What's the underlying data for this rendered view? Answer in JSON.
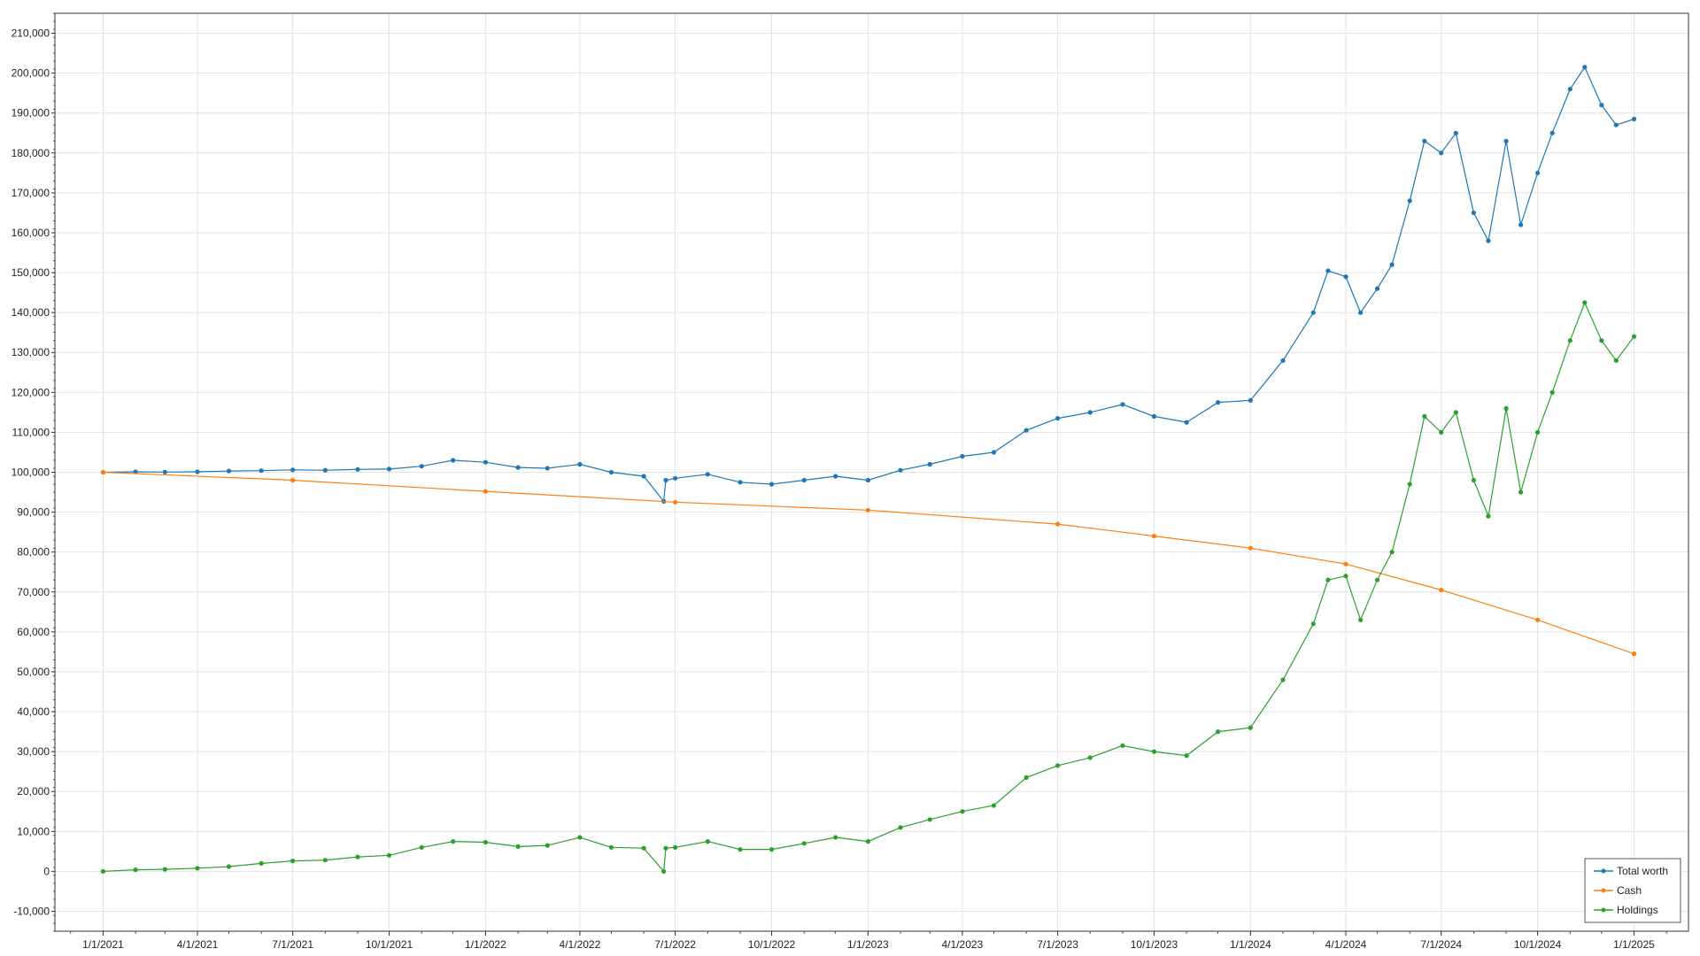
{
  "chart_data": {
    "type": "line",
    "title": "",
    "xlabel": "",
    "ylabel": "",
    "ylim": [
      -15000,
      215000
    ],
    "xlim": [
      "2020-11-16",
      "2025-02-22"
    ],
    "grid": true,
    "legend": "bottom-right",
    "x_ticks": [
      "1/1/2021",
      "4/1/2021",
      "7/1/2021",
      "10/1/2021",
      "1/1/2022",
      "4/1/2022",
      "7/1/2022",
      "10/1/2022",
      "1/1/2023",
      "4/1/2023",
      "7/1/2023",
      "10/1/2023",
      "1/1/2024",
      "4/1/2024",
      "7/1/2024",
      "10/1/2024",
      "1/1/2025"
    ],
    "y_ticks": [
      "-10,000",
      "0",
      "10,000",
      "20,000",
      "30,000",
      "40,000",
      "50,000",
      "60,000",
      "70,000",
      "80,000",
      "90,000",
      "100,000",
      "110,000",
      "120,000",
      "130,000",
      "140,000",
      "150,000",
      "160,000",
      "170,000",
      "180,000",
      "190,000",
      "200,000",
      "210,000"
    ],
    "y_tick_values": [
      -10000,
      0,
      10000,
      20000,
      30000,
      40000,
      50000,
      60000,
      70000,
      80000,
      90000,
      100000,
      110000,
      120000,
      130000,
      140000,
      150000,
      160000,
      170000,
      180000,
      190000,
      200000,
      210000
    ],
    "series": [
      {
        "name": "Total worth",
        "color": "#1f77b4",
        "points": [
          [
            "2021-01-01",
            100000
          ],
          [
            "2021-02-01",
            100100
          ],
          [
            "2021-03-01",
            100050
          ],
          [
            "2021-04-01",
            100100
          ],
          [
            "2021-05-01",
            100300
          ],
          [
            "2021-06-01",
            100400
          ],
          [
            "2021-07-01",
            100600
          ],
          [
            "2021-08-01",
            100500
          ],
          [
            "2021-09-01",
            100700
          ],
          [
            "2021-10-01",
            100800
          ],
          [
            "2021-11-01",
            101500
          ],
          [
            "2021-12-01",
            103000
          ],
          [
            "2022-01-01",
            102500
          ],
          [
            "2022-02-01",
            101200
          ],
          [
            "2022-03-01",
            101000
          ],
          [
            "2022-04-01",
            102000
          ],
          [
            "2022-05-01",
            100000
          ],
          [
            "2022-06-01",
            99000
          ],
          [
            "2022-06-20",
            92700
          ],
          [
            "2022-06-22",
            98000
          ],
          [
            "2022-07-01",
            98500
          ],
          [
            "2022-08-01",
            99500
          ],
          [
            "2022-09-01",
            97500
          ],
          [
            "2022-10-01",
            97000
          ],
          [
            "2022-11-01",
            98000
          ],
          [
            "2022-12-01",
            99000
          ],
          [
            "2023-01-01",
            98000
          ],
          [
            "2023-02-01",
            100500
          ],
          [
            "2023-03-01",
            102000
          ],
          [
            "2023-04-01",
            104000
          ],
          [
            "2023-05-01",
            105000
          ],
          [
            "2023-06-01",
            110500
          ],
          [
            "2023-07-01",
            113500
          ],
          [
            "2023-08-01",
            115000
          ],
          [
            "2023-09-01",
            117000
          ],
          [
            "2023-10-01",
            114000
          ],
          [
            "2023-11-01",
            112500
          ],
          [
            "2023-12-01",
            117500
          ],
          [
            "2024-01-01",
            118000
          ],
          [
            "2024-02-01",
            128000
          ],
          [
            "2024-03-01",
            140000
          ],
          [
            "2024-03-15",
            150500
          ],
          [
            "2024-04-01",
            149000
          ],
          [
            "2024-04-15",
            140000
          ],
          [
            "2024-05-01",
            146000
          ],
          [
            "2024-05-15",
            152000
          ],
          [
            "2024-06-01",
            168000
          ],
          [
            "2024-06-15",
            183000
          ],
          [
            "2024-07-01",
            180000
          ],
          [
            "2024-07-15",
            185000
          ],
          [
            "2024-08-01",
            165000
          ],
          [
            "2024-08-15",
            158000
          ],
          [
            "2024-09-01",
            183000
          ],
          [
            "2024-09-15",
            162000
          ],
          [
            "2024-10-01",
            175000
          ],
          [
            "2024-10-15",
            185000
          ],
          [
            "2024-11-01",
            196000
          ],
          [
            "2024-11-15",
            201500
          ],
          [
            "2024-12-01",
            192000
          ],
          [
            "2024-12-15",
            187000
          ],
          [
            "2025-01-01",
            188500
          ]
        ]
      },
      {
        "name": "Cash",
        "color": "#ff7f0e",
        "points": [
          [
            "2021-01-01",
            100000
          ],
          [
            "2021-07-01",
            98000
          ],
          [
            "2022-01-01",
            95200
          ],
          [
            "2022-07-01",
            92500
          ],
          [
            "2023-01-01",
            90500
          ],
          [
            "2023-07-01",
            87000
          ],
          [
            "2023-10-01",
            84000
          ],
          [
            "2024-01-01",
            81000
          ],
          [
            "2024-04-01",
            77000
          ],
          [
            "2024-07-01",
            70500
          ],
          [
            "2024-10-01",
            63000
          ],
          [
            "2025-01-01",
            54500
          ]
        ]
      },
      {
        "name": "Holdings",
        "color": "#2ca02c",
        "points": [
          [
            "2021-01-01",
            0
          ],
          [
            "2021-02-01",
            400
          ],
          [
            "2021-03-01",
            500
          ],
          [
            "2021-04-01",
            800
          ],
          [
            "2021-05-01",
            1200
          ],
          [
            "2021-06-01",
            2000
          ],
          [
            "2021-07-01",
            2600
          ],
          [
            "2021-08-01",
            2800
          ],
          [
            "2021-09-01",
            3600
          ],
          [
            "2021-10-01",
            4000
          ],
          [
            "2021-11-01",
            6000
          ],
          [
            "2021-12-01",
            7500
          ],
          [
            "2022-01-01",
            7300
          ],
          [
            "2022-02-01",
            6200
          ],
          [
            "2022-03-01",
            6500
          ],
          [
            "2022-04-01",
            8500
          ],
          [
            "2022-05-01",
            6000
          ],
          [
            "2022-06-01",
            5800
          ],
          [
            "2022-06-20",
            0
          ],
          [
            "2022-06-22",
            5800
          ],
          [
            "2022-07-01",
            6000
          ],
          [
            "2022-08-01",
            7500
          ],
          [
            "2022-09-01",
            5500
          ],
          [
            "2022-10-01",
            5500
          ],
          [
            "2022-11-01",
            7000
          ],
          [
            "2022-12-01",
            8500
          ],
          [
            "2023-01-01",
            7500
          ],
          [
            "2023-02-01",
            11000
          ],
          [
            "2023-03-01",
            13000
          ],
          [
            "2023-04-01",
            15000
          ],
          [
            "2023-05-01",
            16500
          ],
          [
            "2023-06-01",
            23500
          ],
          [
            "2023-07-01",
            26500
          ],
          [
            "2023-08-01",
            28500
          ],
          [
            "2023-09-01",
            31500
          ],
          [
            "2023-10-01",
            30000
          ],
          [
            "2023-11-01",
            29000
          ],
          [
            "2023-12-01",
            35000
          ],
          [
            "2024-01-01",
            36000
          ],
          [
            "2024-02-01",
            48000
          ],
          [
            "2024-03-01",
            62000
          ],
          [
            "2024-03-15",
            73000
          ],
          [
            "2024-04-01",
            74000
          ],
          [
            "2024-04-15",
            63000
          ],
          [
            "2024-05-01",
            73000
          ],
          [
            "2024-05-15",
            80000
          ],
          [
            "2024-06-01",
            97000
          ],
          [
            "2024-06-15",
            114000
          ],
          [
            "2024-07-01",
            110000
          ],
          [
            "2024-07-15",
            115000
          ],
          [
            "2024-08-01",
            98000
          ],
          [
            "2024-08-15",
            89000
          ],
          [
            "2024-09-01",
            116000
          ],
          [
            "2024-09-15",
            95000
          ],
          [
            "2024-10-01",
            110000
          ],
          [
            "2024-10-15",
            120000
          ],
          [
            "2024-11-01",
            133000
          ],
          [
            "2024-11-15",
            142500
          ],
          [
            "2024-12-01",
            133000
          ],
          [
            "2024-12-15",
            128000
          ],
          [
            "2025-01-01",
            134000
          ]
        ]
      }
    ]
  }
}
